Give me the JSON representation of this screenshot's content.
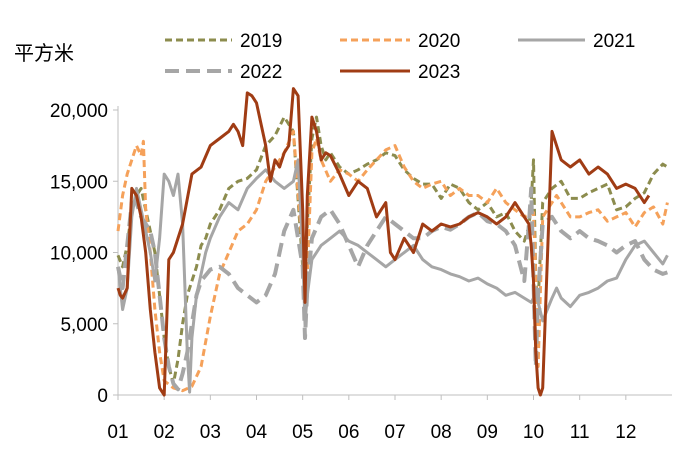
{
  "chart_data": {
    "type": "line",
    "ylabel": "平方米",
    "ylim": [
      0,
      20000
    ],
    "y_ticks": [
      "0",
      "5,000",
      "10,000",
      "15,000",
      "20,000"
    ],
    "y_tick_values": [
      0,
      5000,
      10000,
      15000,
      20000
    ],
    "x_ticks": [
      "01",
      "02",
      "03",
      "04",
      "05",
      "06",
      "07",
      "08",
      "09",
      "10",
      "11",
      "12"
    ],
    "x_domain": [
      1,
      13
    ],
    "grid": false,
    "legend_position": "top",
    "series": [
      {
        "name": "2019",
        "color": "#8c8c4e",
        "dash": "dashed",
        "width": 3,
        "x": [
          1.0,
          1.1,
          1.2,
          1.3,
          1.4,
          1.5,
          1.6,
          1.7,
          1.8,
          1.9,
          2.0,
          2.1,
          2.2,
          2.3,
          2.4,
          2.5,
          2.6,
          2.7,
          2.8,
          2.9,
          3.0,
          3.2,
          3.4,
          3.6,
          3.8,
          4.0,
          4.2,
          4.4,
          4.6,
          4.8,
          5.0,
          5.05,
          5.1,
          5.2,
          5.3,
          5.4,
          5.5,
          5.6,
          5.8,
          6.0,
          6.2,
          6.4,
          6.6,
          6.8,
          7.0,
          7.2,
          7.4,
          7.6,
          7.8,
          8.0,
          8.2,
          8.4,
          8.6,
          8.8,
          9.0,
          9.2,
          9.4,
          9.6,
          9.8,
          9.9,
          9.95,
          10.0,
          10.05,
          10.1,
          10.2,
          10.4,
          10.6,
          10.8,
          11.0,
          11.2,
          11.4,
          11.6,
          11.8,
          12.0,
          12.2,
          12.4,
          12.6,
          12.8,
          12.9
        ],
        "values": [
          9800,
          9000,
          10500,
          13000,
          14000,
          14500,
          13000,
          11500,
          10000,
          7000,
          4000,
          2000,
          800,
          2500,
          5000,
          7000,
          8000,
          9000,
          10500,
          11000,
          12000,
          13000,
          14500,
          15000,
          15200,
          15800,
          17500,
          18200,
          19500,
          18500,
          9000,
          7500,
          12000,
          18000,
          19500,
          17500,
          16500,
          17000,
          16000,
          15500,
          15800,
          16200,
          16500,
          17000,
          16800,
          15800,
          15200,
          14800,
          14800,
          13800,
          14800,
          14500,
          13500,
          13000,
          13500,
          12500,
          12800,
          11500,
          10800,
          11800,
          13500,
          16500,
          8000,
          6500,
          13500,
          14500,
          15000,
          13800,
          13800,
          14200,
          14500,
          14800,
          13000,
          13200,
          13800,
          14200,
          15500,
          16200,
          16000
        ]
      },
      {
        "name": "2020",
        "color": "#f5a15a",
        "dash": "dashed",
        "width": 3,
        "x": [
          1.0,
          1.1,
          1.2,
          1.3,
          1.4,
          1.5,
          1.55,
          1.6,
          1.7,
          1.8,
          1.9,
          2.0,
          2.2,
          2.4,
          2.6,
          2.8,
          3.0,
          3.2,
          3.4,
          3.6,
          3.8,
          4.0,
          4.2,
          4.4,
          4.6,
          4.8,
          5.0,
          5.05,
          5.1,
          5.2,
          5.3,
          5.4,
          5.6,
          5.8,
          6.0,
          6.2,
          6.4,
          6.6,
          6.8,
          7.0,
          7.2,
          7.4,
          7.6,
          7.8,
          8.0,
          8.2,
          8.4,
          8.6,
          8.8,
          9.0,
          9.2,
          9.4,
          9.6,
          9.8,
          10.0,
          10.05,
          10.1,
          10.2,
          10.4,
          10.5,
          10.6,
          10.8,
          11.0,
          11.2,
          11.4,
          11.6,
          11.8,
          12.0,
          12.2,
          12.4,
          12.6,
          12.8,
          12.9
        ],
        "values": [
          11500,
          14000,
          15500,
          16500,
          17500,
          16800,
          17800,
          13000,
          10000,
          6000,
          3000,
          1000,
          500,
          300,
          600,
          2000,
          5500,
          8500,
          10000,
          11500,
          12000,
          13000,
          15000,
          16000,
          17000,
          18500,
          10000,
          6500,
          8500,
          17000,
          18000,
          16500,
          15000,
          15800,
          15500,
          15000,
          15800,
          16500,
          17200,
          17500,
          16000,
          15000,
          14500,
          14800,
          15000,
          14000,
          14500,
          14000,
          14000,
          13500,
          14500,
          13500,
          13000,
          12500,
          12800,
          8000,
          2000,
          12500,
          13500,
          14000,
          13500,
          12500,
          12500,
          12800,
          13000,
          12200,
          12500,
          12800,
          11800,
          12800,
          13200,
          12000,
          13500
        ]
      },
      {
        "name": "2021",
        "color": "#a6a6a6",
        "dash": "solid",
        "width": 3,
        "x": [
          1.0,
          1.1,
          1.2,
          1.3,
          1.4,
          1.5,
          1.6,
          1.7,
          1.8,
          1.9,
          2.0,
          2.1,
          2.2,
          2.3,
          2.4,
          2.5,
          2.55,
          2.6,
          2.7,
          2.8,
          2.9,
          3.0,
          3.2,
          3.4,
          3.6,
          3.8,
          4.0,
          4.2,
          4.4,
          4.6,
          4.8,
          4.9,
          5.0,
          5.05,
          5.1,
          5.2,
          5.4,
          5.6,
          5.8,
          6.0,
          6.2,
          6.4,
          6.6,
          6.8,
          7.0,
          7.2,
          7.4,
          7.6,
          7.8,
          8.0,
          8.2,
          8.4,
          8.6,
          8.8,
          9.0,
          9.2,
          9.4,
          9.6,
          9.8,
          9.95,
          10.0,
          10.05,
          10.1,
          10.2,
          10.4,
          10.5,
          10.6,
          10.8,
          11.0,
          11.2,
          11.4,
          11.6,
          11.8,
          12.0,
          12.2,
          12.4,
          12.6,
          12.8,
          12.9
        ],
        "values": [
          9000,
          6000,
          7500,
          12500,
          14500,
          13000,
          11500,
          10000,
          8000,
          11000,
          15500,
          15000,
          14000,
          15500,
          12000,
          3000,
          200,
          4000,
          7000,
          8500,
          10000,
          11000,
          12500,
          13500,
          13000,
          14500,
          15200,
          15800,
          15000,
          14500,
          15000,
          16500,
          10000,
          5000,
          7000,
          9500,
          10500,
          11000,
          11500,
          10800,
          10500,
          10000,
          9500,
          9000,
          9500,
          10000,
          10500,
          9500,
          9000,
          8800,
          8500,
          8300,
          8000,
          8200,
          7800,
          7500,
          7000,
          7200,
          6800,
          6500,
          6800,
          7500,
          6500,
          5200,
          6800,
          7500,
          6800,
          6200,
          7000,
          7200,
          7500,
          8000,
          8200,
          9500,
          10500,
          10800,
          10000,
          9200,
          9800
        ]
      },
      {
        "name": "2022",
        "color": "#a6a6a6",
        "dash": "dashed",
        "width": 4,
        "x": [
          1.0,
          1.1,
          1.2,
          1.3,
          1.4,
          1.5,
          1.6,
          1.7,
          1.8,
          1.9,
          2.0,
          2.1,
          2.2,
          2.3,
          2.4,
          2.5,
          2.6,
          2.7,
          2.8,
          3.0,
          3.2,
          3.4,
          3.6,
          3.8,
          4.0,
          4.2,
          4.4,
          4.6,
          4.8,
          5.0,
          5.05,
          5.1,
          5.2,
          5.4,
          5.6,
          5.8,
          6.0,
          6.2,
          6.4,
          6.6,
          6.8,
          7.0,
          7.2,
          7.4,
          7.6,
          7.8,
          8.0,
          8.2,
          8.4,
          8.6,
          8.8,
          9.0,
          9.2,
          9.4,
          9.6,
          9.8,
          9.9,
          9.95,
          10.0,
          10.05,
          10.1,
          10.2,
          10.4,
          10.6,
          10.8,
          11.0,
          11.2,
          11.4,
          11.6,
          11.8,
          12.0,
          12.2,
          12.4,
          12.6,
          12.8,
          12.9
        ],
        "values": [
          9000,
          7500,
          10500,
          13500,
          13500,
          12500,
          12000,
          11500,
          10000,
          7000,
          4000,
          2000,
          800,
          400,
          1500,
          3000,
          5000,
          7000,
          8000,
          8800,
          9000,
          8500,
          7500,
          7000,
          6500,
          7000,
          8500,
          11500,
          13000,
          9000,
          4000,
          7500,
          11000,
          12500,
          13000,
          12000,
          10500,
          9000,
          10500,
          11500,
          12500,
          12000,
          11500,
          11000,
          11000,
          11500,
          11800,
          11600,
          12000,
          12500,
          12800,
          12200,
          12000,
          11500,
          10500,
          8000,
          12000,
          14500,
          8000,
          2000,
          7000,
          12000,
          12500,
          11500,
          11000,
          11500,
          11000,
          10800,
          10500,
          10000,
          10500,
          10800,
          9500,
          8800,
          8500,
          8600
        ]
      },
      {
        "name": "2023",
        "color": "#a03c14",
        "dash": "solid",
        "width": 3,
        "x": [
          1.0,
          1.05,
          1.1,
          1.2,
          1.3,
          1.4,
          1.5,
          1.6,
          1.7,
          1.8,
          1.9,
          2.0,
          2.1,
          2.2,
          2.4,
          2.6,
          2.8,
          3.0,
          3.2,
          3.4,
          3.5,
          3.6,
          3.7,
          3.8,
          3.9,
          4.0,
          4.1,
          4.2,
          4.3,
          4.4,
          4.5,
          4.6,
          4.7,
          4.8,
          4.9,
          5.0,
          5.05,
          5.1,
          5.2,
          5.3,
          5.4,
          5.5,
          5.6,
          5.8,
          6.0,
          6.2,
          6.4,
          6.6,
          6.8,
          6.9,
          7.0,
          7.2,
          7.4,
          7.6,
          7.8,
          8.0,
          8.2,
          8.4,
          8.6,
          8.8,
          9.0,
          9.2,
          9.4,
          9.6,
          9.8,
          9.9,
          9.95,
          10.0,
          10.05,
          10.1,
          10.15,
          10.2,
          10.4,
          10.6,
          10.8,
          11.0,
          11.2,
          11.4,
          11.6,
          11.8,
          12.0,
          12.2,
          12.4,
          12.5
        ],
        "values": [
          7500,
          7000,
          6800,
          7500,
          14500,
          14000,
          12500,
          10000,
          6000,
          3000,
          500,
          0,
          9500,
          10000,
          12000,
          15500,
          16000,
          17500,
          18000,
          18500,
          19000,
          18500,
          17500,
          21200,
          21000,
          20500,
          19000,
          17500,
          15000,
          16500,
          16000,
          17000,
          17500,
          21500,
          21000,
          13000,
          6500,
          14000,
          19500,
          18500,
          16500,
          17000,
          16800,
          15500,
          14000,
          15000,
          14500,
          12500,
          13500,
          10000,
          9500,
          11000,
          10000,
          12000,
          11500,
          12000,
          11800,
          12000,
          12500,
          12800,
          12500,
          12000,
          12500,
          13500,
          12500,
          12000,
          10500,
          8000,
          3000,
          500,
          0,
          500,
          18500,
          16500,
          16000,
          16500,
          15500,
          16000,
          15500,
          14500,
          14800,
          14500,
          13500,
          14000
        ]
      }
    ]
  }
}
